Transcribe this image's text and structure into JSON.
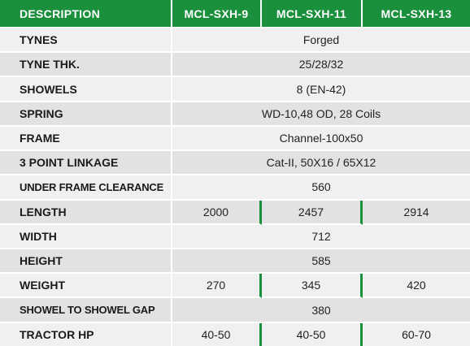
{
  "header": {
    "description": "DESCRIPTION",
    "models": [
      "MCL-SXH-9",
      "MCL-SXH-11",
      "MCL-SXH-13"
    ]
  },
  "rows": [
    {
      "label": "TYNES",
      "value": "Forged"
    },
    {
      "label": "TYNE THK.",
      "value": "25/28/32"
    },
    {
      "label": "SHOWELS",
      "value": "8 (EN-42)"
    },
    {
      "label": "SPRING",
      "value": "WD-10,48 OD, 28 Coils"
    },
    {
      "label": "FRAME",
      "value": "Channel-100x50"
    },
    {
      "label": "3 POINT LINKAGE",
      "value": "Cat-II, 50X16 / 65X12"
    },
    {
      "label": "UNDER FRAME CLEARANCE",
      "value": "560"
    },
    {
      "label": "LENGTH",
      "values": [
        "2000",
        "2457",
        "2914"
      ]
    },
    {
      "label": "WIDTH",
      "value": "712"
    },
    {
      "label": "HEIGHT",
      "value": "585"
    },
    {
      "label": "WEIGHT",
      "values": [
        "270",
        "345",
        "420"
      ]
    },
    {
      "label": "SHOWEL TO SHOWEL GAP",
      "value": "380"
    },
    {
      "label": "TRACTOR HP",
      "values": [
        "40-50",
        "40-50",
        "60-70"
      ]
    }
  ],
  "colors": {
    "header_green": "#1a8f3c",
    "row_light": "#f0f0f0",
    "row_dark": "#e2e2e2"
  }
}
